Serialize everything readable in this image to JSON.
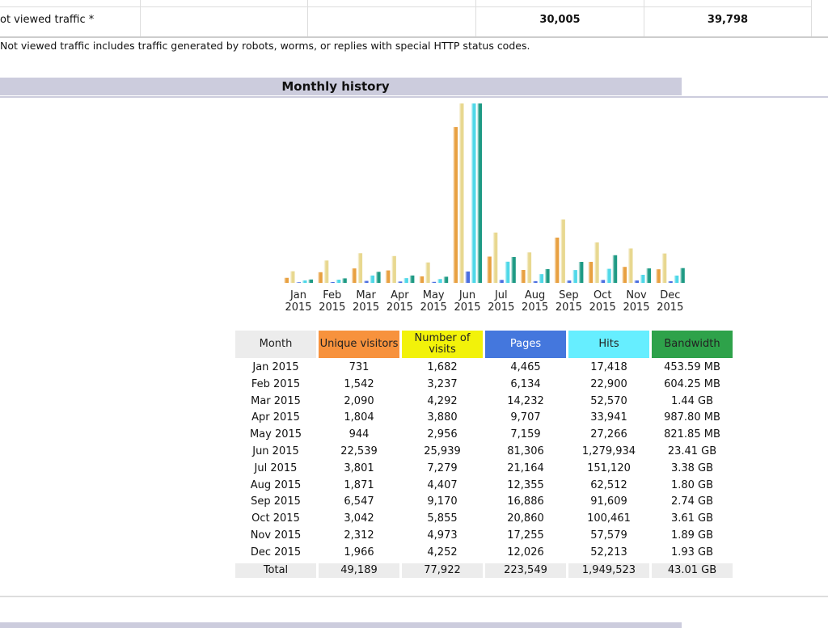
{
  "summary_row": {
    "label": "ot viewed traffic *",
    "hits": "30,005",
    "bandwidth": "39,798"
  },
  "note": "Not viewed traffic includes traffic generated by robots, worms, or replies with special HTTP status codes.",
  "monthly_history": {
    "title": "Monthly history",
    "columns": [
      "Month",
      "Unique visitors",
      "Number of visits",
      "Pages",
      "Hits",
      "Bandwidth"
    ],
    "column_colors": [
      "#ececec",
      "#f7923d",
      "#f2f20a",
      "#4477dd",
      "#66eeff",
      "#2ea24a"
    ],
    "bar_colors": [
      "#e8a040",
      "#e8d890",
      "#4a6ee0",
      "#50d8e8",
      "#1e9a84"
    ],
    "axis_labels": [
      [
        "Jan",
        "2015"
      ],
      [
        "Feb",
        "2015"
      ],
      [
        "Mar",
        "2015"
      ],
      [
        "Apr",
        "2015"
      ],
      [
        "May",
        "2015"
      ],
      [
        "Jun",
        "2015"
      ],
      [
        "Jul",
        "2015"
      ],
      [
        "Aug",
        "2015"
      ],
      [
        "Sep",
        "2015"
      ],
      [
        "Oct",
        "2015"
      ],
      [
        "Nov",
        "2015"
      ],
      [
        "Dec",
        "2015"
      ]
    ],
    "rows": [
      [
        "Jan 2015",
        {
          "value": 731,
          "label": "731"
        },
        {
          "value": 1682,
          "label": "1,682"
        },
        {
          "value": 4465,
          "label": "4,465"
        },
        {
          "value": 17418,
          "label": "17,418"
        },
        {
          "value": 453.59,
          "label": "453.59 MB"
        }
      ],
      [
        "Feb 2015",
        {
          "value": 1542,
          "label": "1,542"
        },
        {
          "value": 3237,
          "label": "3,237"
        },
        {
          "value": 6134,
          "label": "6,134"
        },
        {
          "value": 22900,
          "label": "22,900"
        },
        {
          "value": 604.25,
          "label": "604.25 MB"
        }
      ],
      [
        "Mar 2015",
        {
          "value": 2090,
          "label": "2,090"
        },
        {
          "value": 4292,
          "label": "4,292"
        },
        {
          "value": 14232,
          "label": "14,232"
        },
        {
          "value": 52570,
          "label": "52,570"
        },
        {
          "value": 1474.56,
          "label": "1.44 GB"
        }
      ],
      [
        "Apr 2015",
        {
          "value": 1804,
          "label": "1,804"
        },
        {
          "value": 3880,
          "label": "3,880"
        },
        {
          "value": 9707,
          "label": "9,707"
        },
        {
          "value": 33941,
          "label": "33,941"
        },
        {
          "value": 987.8,
          "label": "987.80 MB"
        }
      ],
      [
        "May 2015",
        {
          "value": 944,
          "label": "944"
        },
        {
          "value": 2956,
          "label": "2,956"
        },
        {
          "value": 7159,
          "label": "7,159"
        },
        {
          "value": 27266,
          "label": "27,266"
        },
        {
          "value": 821.85,
          "label": "821.85 MB"
        }
      ],
      [
        "Jun 2015",
        {
          "value": 22539,
          "label": "22,539"
        },
        {
          "value": 25939,
          "label": "25,939"
        },
        {
          "value": 81306,
          "label": "81,306"
        },
        {
          "value": 1279934,
          "label": "1,279,934"
        },
        {
          "value": 23971.84,
          "label": "23.41 GB"
        }
      ],
      [
        "Jul 2015",
        {
          "value": 3801,
          "label": "3,801"
        },
        {
          "value": 7279,
          "label": "7,279"
        },
        {
          "value": 21164,
          "label": "21,164"
        },
        {
          "value": 151120,
          "label": "151,120"
        },
        {
          "value": 3461.12,
          "label": "3.38 GB"
        }
      ],
      [
        "Aug 2015",
        {
          "value": 1871,
          "label": "1,871"
        },
        {
          "value": 4407,
          "label": "4,407"
        },
        {
          "value": 12355,
          "label": "12,355"
        },
        {
          "value": 62512,
          "label": "62,512"
        },
        {
          "value": 1843.2,
          "label": "1.80 GB"
        }
      ],
      [
        "Sep 2015",
        {
          "value": 6547,
          "label": "6,547"
        },
        {
          "value": 9170,
          "label": "9,170"
        },
        {
          "value": 16886,
          "label": "16,886"
        },
        {
          "value": 91609,
          "label": "91,609"
        },
        {
          "value": 2805.76,
          "label": "2.74 GB"
        }
      ],
      [
        "Oct 2015",
        {
          "value": 3042,
          "label": "3,042"
        },
        {
          "value": 5855,
          "label": "5,855"
        },
        {
          "value": 20860,
          "label": "20,860"
        },
        {
          "value": 100461,
          "label": "100,461"
        },
        {
          "value": 3696.64,
          "label": "3.61 GB"
        }
      ],
      [
        "Nov 2015",
        {
          "value": 2312,
          "label": "2,312"
        },
        {
          "value": 4973,
          "label": "4,973"
        },
        {
          "value": 17255,
          "label": "17,255"
        },
        {
          "value": 57579,
          "label": "57,579"
        },
        {
          "value": 1935.36,
          "label": "1.89 GB"
        }
      ],
      [
        "Dec 2015",
        {
          "value": 1966,
          "label": "1,966"
        },
        {
          "value": 4252,
          "label": "4,252"
        },
        {
          "value": 12026,
          "label": "12,026"
        },
        {
          "value": 52213,
          "label": "52,213"
        },
        {
          "value": 1976.32,
          "label": "1.93 GB"
        }
      ]
    ],
    "total": [
      "Total",
      "49,189",
      "77,922",
      "223,549",
      "1,949,523",
      "43.01 GB"
    ]
  }
}
